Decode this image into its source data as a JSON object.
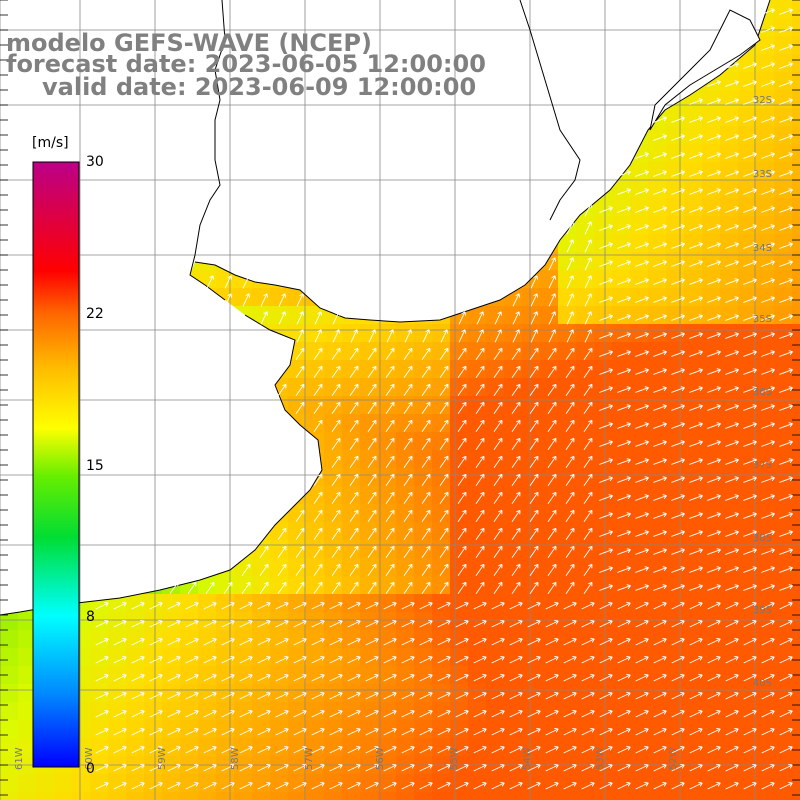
{
  "title": {
    "line1": "modelo GEFS-WAVE (NCEP)",
    "line2": "forecast date: 2023-06-05 12:00:00",
    "line3": "valid date: 2023-06-09 12:00:00"
  },
  "colorbar": {
    "unit": "[m/s]",
    "ticks": [
      "30",
      "22",
      "15",
      "8",
      "0"
    ],
    "range": [
      0,
      30
    ],
    "colors": [
      "#0000ff",
      "#00aaff",
      "#00ffff",
      "#00dd44",
      "#22dd00",
      "#88ee00",
      "#ffff00",
      "#ffcc00",
      "#ff8800",
      "#ff3300",
      "#ff0000",
      "#ee2255",
      "#cc1177"
    ]
  },
  "map": {
    "lon_labels": [
      "61W",
      "60W",
      "59W",
      "58W",
      "57W",
      "56W",
      "55W",
      "54W",
      "53W",
      "52W"
    ],
    "lat_labels": [
      "32S",
      "33S",
      "34S",
      "35S",
      "36S",
      "37S",
      "38S",
      "39S",
      "40S"
    ],
    "land_color": "#ffffff",
    "coast_color": "#000000",
    "grid_color": "#808080",
    "arrow_color": "#ffffff"
  }
}
